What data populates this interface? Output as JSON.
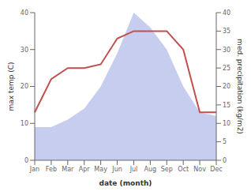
{
  "chart_data": {
    "type": "line",
    "categories": [
      "Jan",
      "Feb",
      "Mar",
      "Apr",
      "May",
      "Jun",
      "Jul",
      "Aug",
      "Sep",
      "Oct",
      "Nov",
      "Dec"
    ],
    "xlabel": "date (month)",
    "ylabel": "max temp (C)",
    "y2label": "med. precipitation (kg/m2)",
    "ylim": [
      0,
      40
    ],
    "yticks": [
      0,
      10,
      20,
      30,
      40
    ],
    "y2lim": [
      0,
      40
    ],
    "y2ticks": [
      0,
      5,
      10,
      15,
      20,
      25,
      30,
      35,
      40
    ],
    "grid": false,
    "series": [
      {
        "type": "area",
        "axis": "y2",
        "color": "#b3bce8",
        "values": [
          9,
          9,
          11,
          14,
          20,
          29,
          40,
          36,
          30,
          20,
          13,
          12
        ]
      },
      {
        "type": "line",
        "color": "#c0504d",
        "values": [
          13,
          22,
          25,
          25,
          26,
          33,
          35,
          35,
          35,
          30,
          13,
          13
        ]
      }
    ]
  }
}
